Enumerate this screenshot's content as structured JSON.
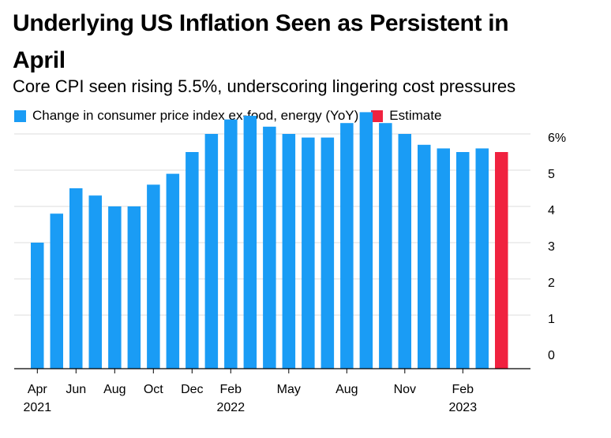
{
  "header": {
    "title": "Underlying US Inflation Seen as Persistent in April",
    "subtitle": "Core CPI seen rising 5.5%, underscoring lingering cost pressures"
  },
  "legend": {
    "items": [
      {
        "label": "Change in consumer price index ex-food, energy (YoY)",
        "color": "#1a9cf5"
      },
      {
        "label": "Estimate",
        "color": "#f0223f"
      }
    ]
  },
  "chart_data": {
    "type": "bar",
    "categories": [
      "Apr 2021",
      "May 2021",
      "Jun 2021",
      "Jul 2021",
      "Aug 2021",
      "Sep 2021",
      "Oct 2021",
      "Nov 2021",
      "Dec 2021",
      "Jan 2022",
      "Feb 2022",
      "Mar 2022",
      "Apr 2022",
      "May 2022",
      "Jun 2022",
      "Jul 2022",
      "Aug 2022",
      "Sep 2022",
      "Oct 2022",
      "Nov 2022",
      "Dec 2022",
      "Jan 2023",
      "Feb 2023",
      "Mar 2023",
      "Apr 2023"
    ],
    "series": [
      {
        "name": "Change in consumer price index ex-food, energy (YoY)",
        "color": "#1a9cf5",
        "values": [
          3.0,
          3.8,
          4.5,
          4.3,
          4.0,
          4.0,
          4.6,
          4.9,
          5.5,
          6.0,
          6.4,
          6.5,
          6.2,
          6.0,
          5.9,
          5.9,
          6.3,
          6.6,
          6.3,
          6.0,
          5.7,
          5.6,
          5.5,
          5.6,
          null
        ]
      },
      {
        "name": "Estimate",
        "color": "#f0223f",
        "values": [
          null,
          null,
          null,
          null,
          null,
          null,
          null,
          null,
          null,
          null,
          null,
          null,
          null,
          null,
          null,
          null,
          null,
          null,
          null,
          null,
          null,
          null,
          null,
          null,
          5.5
        ]
      }
    ],
    "x_tick_labels": [
      {
        "index": 0,
        "month": "Apr",
        "year": "2021"
      },
      {
        "index": 2,
        "month": "Jun",
        "year": ""
      },
      {
        "index": 4,
        "month": "Aug",
        "year": ""
      },
      {
        "index": 6,
        "month": "Oct",
        "year": ""
      },
      {
        "index": 8,
        "month": "Dec",
        "year": ""
      },
      {
        "index": 10,
        "month": "Feb",
        "year": "2022"
      },
      {
        "index": 13,
        "month": "May",
        "year": ""
      },
      {
        "index": 16,
        "month": "Aug",
        "year": ""
      },
      {
        "index": 19,
        "month": "Nov",
        "year": ""
      },
      {
        "index": 22,
        "month": "Feb",
        "year": "2023"
      }
    ],
    "y_ticks": [
      0,
      1,
      2,
      3,
      4,
      5,
      6
    ],
    "y_tick_labels": [
      "0",
      "1",
      "2",
      "3",
      "4",
      "5",
      "6%"
    ],
    "ylim": [
      0,
      6.5
    ],
    "y_axis_position": "right",
    "grid": true,
    "legend_position": "top-left",
    "xlabel": "",
    "ylabel": ""
  }
}
